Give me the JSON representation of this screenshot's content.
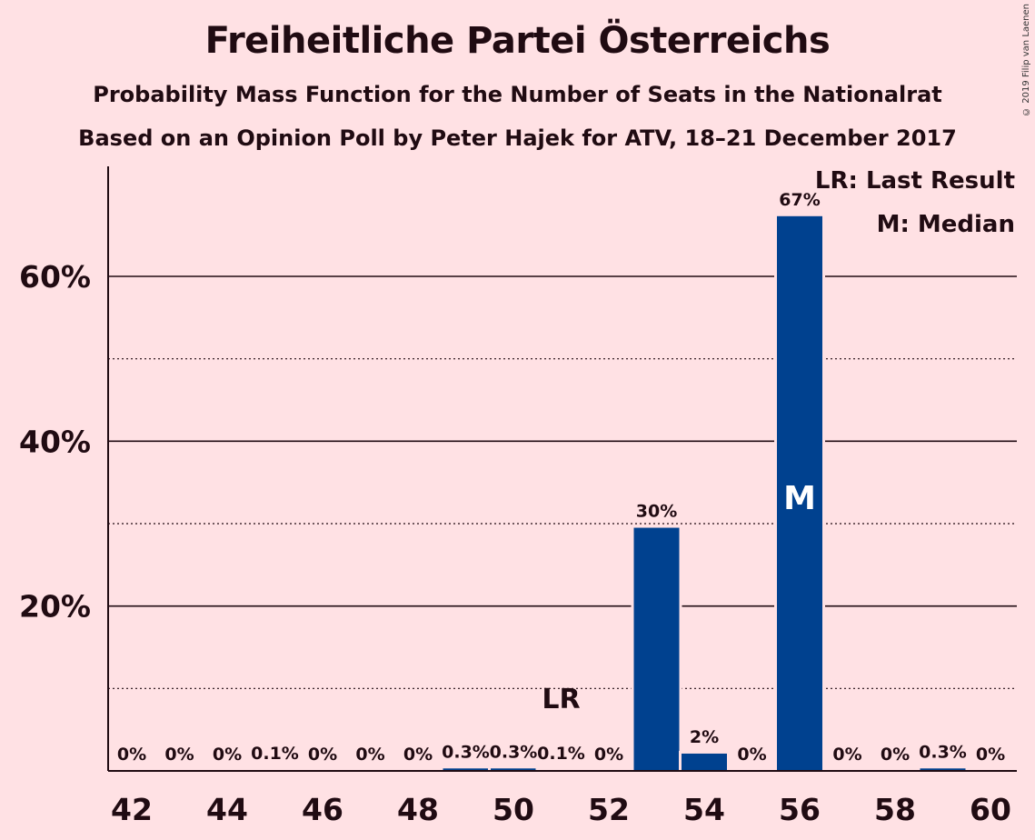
{
  "title": "Freiheitliche Partei Österreichs",
  "subtitle": "Probability Mass Function for the Number of Seats in the Nationalrat",
  "subtitle2": "Based on an Opinion Poll by Peter Hajek for ATV, 18–21 December 2017",
  "copyright": "© 2019 Filip van Laenen",
  "legend": {
    "last_result": "LR: Last Result",
    "median": "M: Median"
  },
  "colors": {
    "background": "#ffe1e4",
    "bar": "#00418f",
    "text": "#200b12"
  },
  "chart_data": {
    "type": "bar",
    "title": "Freiheitliche Partei Österreichs",
    "xlabel": "",
    "ylabel": "",
    "categories": [
      42,
      43,
      44,
      45,
      46,
      47,
      48,
      49,
      50,
      51,
      52,
      53,
      54,
      55,
      56,
      57,
      58,
      59,
      60
    ],
    "values": [
      0,
      0,
      0,
      0.1,
      0,
      0,
      0,
      0.3,
      0.3,
      0.1,
      0,
      29.5,
      2.1,
      0,
      67.3,
      0,
      0,
      0.3,
      0
    ],
    "data_labels": [
      "0%",
      "0%",
      "0%",
      "0.1%",
      "0%",
      "0%",
      "0%",
      "0.3%",
      "0.3%",
      "0.1%",
      "0%",
      "30%",
      "2%",
      "0%",
      "67%",
      "0%",
      "0%",
      "0.3%",
      "0%"
    ],
    "x_tick_labels": [
      "42",
      "44",
      "46",
      "48",
      "50",
      "52",
      "54",
      "56",
      "58",
      "60"
    ],
    "y_ticks": [
      20,
      40,
      60
    ],
    "y_tick_labels": [
      "20%",
      "40%",
      "60%"
    ],
    "y_minor_ticks": [
      10,
      30,
      50
    ],
    "ylim": [
      0,
      73
    ],
    "last_result": {
      "seat": 51,
      "label": "LR"
    },
    "median": {
      "seat": 56,
      "label": "M"
    },
    "grid": true,
    "legend_position": "top-right"
  }
}
